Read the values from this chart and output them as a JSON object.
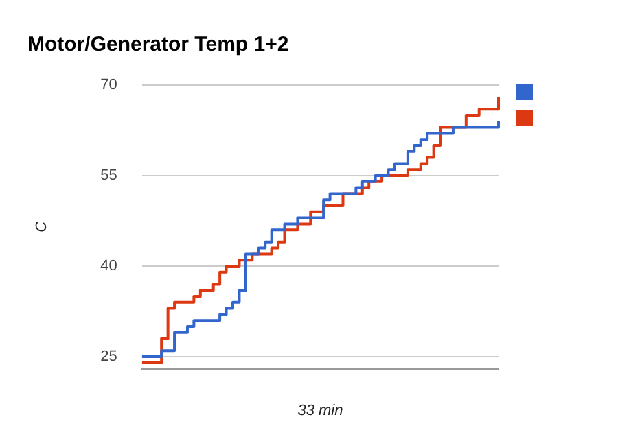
{
  "chart_data": {
    "type": "step",
    "title": "Motor/Generator Temp 1+2",
    "xlabel": "33 min",
    "ylabel": "C",
    "categories": [
      null,
      null,
      null,
      null,
      null,
      null,
      null,
      null,
      null,
      null,
      null,
      null,
      null,
      null,
      null,
      null,
      null,
      null,
      null,
      null,
      null,
      null,
      null,
      null,
      null,
      null,
      null,
      null,
      null,
      null,
      null,
      null,
      null,
      null,
      null,
      null,
      null,
      null,
      null,
      null,
      null,
      null,
      null,
      null,
      null,
      null,
      null,
      null,
      null,
      null,
      null,
      null,
      null,
      null,
      null,
      null
    ],
    "series": [
      {
        "color": "#3366cc",
        "values": [
          25,
          25,
          25,
          26,
          26,
          29,
          29,
          30,
          31,
          31,
          31,
          31,
          32,
          33,
          34,
          36,
          42,
          42,
          43,
          44,
          46,
          46,
          47,
          47,
          48,
          48,
          48,
          48,
          51,
          52,
          52,
          52,
          52,
          53,
          54,
          54,
          55,
          55,
          56,
          57,
          57,
          59,
          60,
          61,
          62,
          62,
          62,
          62,
          63,
          63,
          63,
          63,
          63,
          63,
          63,
          64
        ]
      },
      {
        "color": "#dc3912",
        "values": [
          24,
          24,
          24,
          28,
          33,
          34,
          34,
          34,
          35,
          36,
          36,
          37,
          39,
          40,
          40,
          41,
          41,
          42,
          42,
          42,
          43,
          44,
          46,
          46,
          47,
          47,
          49,
          49,
          50,
          50,
          50,
          52,
          52,
          52,
          53,
          54,
          54,
          55,
          55,
          55,
          55,
          56,
          56,
          57,
          58,
          60,
          63,
          63,
          63,
          63,
          65,
          65,
          66,
          66,
          66,
          68
        ]
      }
    ],
    "ylim": [
      23,
      70
    ],
    "yticks": [
      25,
      40,
      55,
      70
    ],
    "grid": "y",
    "tick_labels": "y"
  }
}
